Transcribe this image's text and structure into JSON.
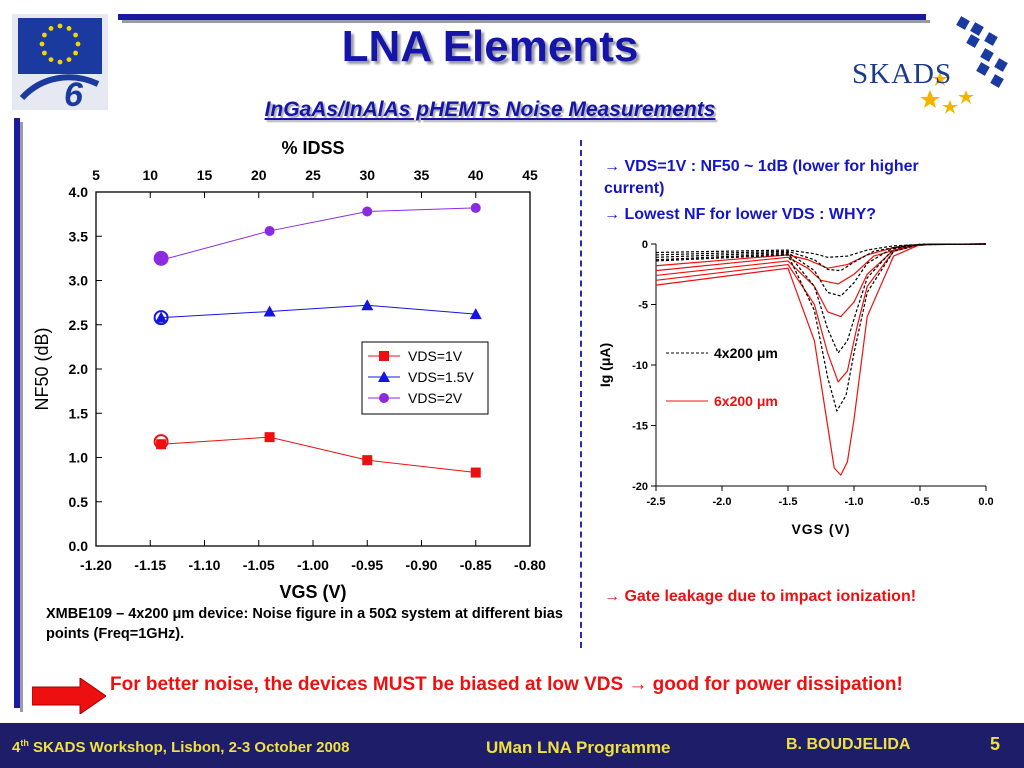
{
  "title": "LNA Elements",
  "subtitle": "InGaAs/InAlAs pHEMTs Noise Measurements",
  "logos": {
    "left": "eu-fp6-logo",
    "right_text": "SKADS"
  },
  "notes": {
    "n1": "→ VDS=1V : NF50 ~ 1dB (lower for higher current)",
    "n2": "→ Lowest NF for lower VDS : WHY?",
    "n3": "→ Gate leakage due to impact ionization!"
  },
  "caption": "XMBE109 – 4x200 μm device: Noise figure in a 50Ω system at different bias points (Freq=1GHz).",
  "conclusion": "For better noise, the devices MUST be biased at low VDS → good for power dissipation!",
  "footer": {
    "workshop_pre": "4",
    "workshop_sup": "th",
    "workshop_post": " SKADS Workshop, Lisbon, 2-3 October 2008",
    "programme": "UMan LNA Programme",
    "author": "B. BOUDJELIDA",
    "page": "5"
  },
  "colors": {
    "accent": "#1515a8",
    "red": "#ee1010",
    "footer_bg": "#1d1d6a",
    "footer_text": "#f0e040"
  },
  "chart_data": [
    {
      "type": "line",
      "title": "",
      "xlabel": "VGS (V)",
      "ylabel": "NF50 (dB)",
      "top_axis_label": "% IDSS",
      "xlim": [
        -1.2,
        -0.8
      ],
      "ylim": [
        0.0,
        4.0
      ],
      "top_xlim": [
        5,
        45
      ],
      "xticks": [
        "-1.20",
        "-1.15",
        "-1.10",
        "-1.05",
        "-1.00",
        "-0.95",
        "-0.90",
        "-0.85",
        "-0.80"
      ],
      "yticks": [
        "0.0",
        "0.5",
        "1.0",
        "1.5",
        "2.0",
        "2.5",
        "3.0",
        "3.5",
        "4.0"
      ],
      "top_xticks": [
        "5",
        "10",
        "15",
        "20",
        "25",
        "30",
        "35",
        "40",
        "45"
      ],
      "grid": false,
      "legend_position": "center-right",
      "series": [
        {
          "name": "VDS=1V",
          "color": "#ee1010",
          "marker": "square",
          "x": [
            -1.14,
            -1.04,
            -0.95,
            -0.85
          ],
          "y": [
            1.15,
            1.23,
            0.97,
            0.83
          ]
        },
        {
          "name": "VDS=1.5V",
          "color": "#1515e0",
          "marker": "triangle",
          "x": [
            -1.14,
            -1.04,
            -0.95,
            -0.85
          ],
          "y": [
            2.58,
            2.65,
            2.72,
            2.62
          ]
        },
        {
          "name": "VDS=2V",
          "color": "#8a2be2",
          "marker": "circle",
          "x": [
            -1.14,
            -1.04,
            -0.95,
            -0.85
          ],
          "y": [
            3.23,
            3.56,
            3.78,
            3.82
          ]
        }
      ],
      "highlight_markers": [
        {
          "color": "#ee1010",
          "x": -1.14,
          "y": 1.18
        },
        {
          "color": "#1515e0",
          "x": -1.14,
          "y": 2.58
        },
        {
          "color": "#8a2be2",
          "x": -1.14,
          "y": 3.25
        }
      ]
    },
    {
      "type": "line",
      "title": "",
      "xlabel": "VGS (V)",
      "ylabel": "Ig (μA)",
      "xlim": [
        -2.5,
        0.0
      ],
      "ylim": [
        -20,
        0
      ],
      "xticks": [
        "-2.5",
        "-2.0",
        "-1.5",
        "-1.0",
        "-0.5",
        "0.0"
      ],
      "yticks": [
        "0",
        "-5",
        "-10",
        "-15",
        "-20"
      ],
      "grid": false,
      "legend_position": "center-left",
      "legend": [
        {
          "name": "4x200 μm",
          "style": "dashed",
          "color": "#000000"
        },
        {
          "name": "6x200 μm",
          "style": "solid",
          "color": "#ee1010"
        }
      ],
      "series": [
        {
          "device": "6x200",
          "color": "#ee1010",
          "dashed": false,
          "x": [
            -2.5,
            -1.5,
            -1.3,
            -1.2,
            -1.15,
            -1.1,
            -1.05,
            -1.0,
            -0.9,
            -0.7,
            -0.5,
            0.0
          ],
          "y": [
            -3.4,
            -2.0,
            -8.0,
            -15.0,
            -18.5,
            -19.1,
            -18.0,
            -14.5,
            -6.0,
            -1.0,
            -0.05,
            0.0
          ]
        },
        {
          "device": "6x200",
          "color": "#ee1010",
          "dashed": false,
          "x": [
            -2.5,
            -1.5,
            -1.3,
            -1.2,
            -1.12,
            -1.05,
            -0.98,
            -0.9,
            -0.7,
            -0.5,
            0.0
          ],
          "y": [
            -3.0,
            -1.7,
            -5.0,
            -9.0,
            -11.4,
            -10.5,
            -7.0,
            -3.5,
            -0.6,
            -0.05,
            0.0
          ]
        },
        {
          "device": "6x200",
          "color": "#ee1010",
          "dashed": false,
          "x": [
            -2.5,
            -1.5,
            -1.3,
            -1.2,
            -1.1,
            -1.0,
            -0.9,
            -0.7,
            -0.5,
            0.0
          ],
          "y": [
            -2.6,
            -1.4,
            -3.5,
            -5.6,
            -6.0,
            -4.8,
            -2.5,
            -0.5,
            -0.05,
            0.0
          ]
        },
        {
          "device": "6x200",
          "color": "#ee1010",
          "dashed": false,
          "x": [
            -2.5,
            -1.5,
            -1.35,
            -1.25,
            -1.12,
            -1.0,
            -0.85,
            -0.6,
            -0.4,
            0.0
          ],
          "y": [
            -2.2,
            -1.1,
            -2.0,
            -3.0,
            -3.3,
            -2.5,
            -1.0,
            -0.2,
            -0.02,
            0.0
          ]
        },
        {
          "device": "6x200",
          "color": "#ee1010",
          "dashed": false,
          "x": [
            -2.5,
            -1.5,
            -1.35,
            -1.2,
            -1.05,
            -0.9,
            -0.7,
            -0.4,
            0.0
          ],
          "y": [
            -1.8,
            -0.9,
            -1.3,
            -2.0,
            -1.7,
            -0.9,
            -0.3,
            -0.02,
            0.0
          ]
        },
        {
          "device": "4x200",
          "color": "#000000",
          "dashed": true,
          "x": [
            -2.5,
            -1.5,
            -1.3,
            -1.2,
            -1.13,
            -1.06,
            -1.0,
            -0.9,
            -0.7,
            -0.5,
            0.0
          ],
          "y": [
            -1.4,
            -0.9,
            -5.5,
            -11.0,
            -13.8,
            -12.5,
            -9.0,
            -4.0,
            -0.6,
            -0.05,
            0.0
          ]
        },
        {
          "device": "4x200",
          "color": "#000000",
          "dashed": true,
          "x": [
            -2.5,
            -1.5,
            -1.3,
            -1.2,
            -1.12,
            -1.05,
            -0.98,
            -0.9,
            -0.7,
            -0.5,
            0.0
          ],
          "y": [
            -1.3,
            -0.8,
            -3.5,
            -7.0,
            -9.0,
            -8.0,
            -5.5,
            -2.8,
            -0.4,
            -0.03,
            0.0
          ]
        },
        {
          "device": "4x200",
          "color": "#000000",
          "dashed": true,
          "x": [
            -2.5,
            -1.5,
            -1.3,
            -1.2,
            -1.1,
            -1.0,
            -0.9,
            -0.7,
            -0.5,
            0.0
          ],
          "y": [
            -1.1,
            -0.7,
            -2.2,
            -4.0,
            -4.3,
            -3.2,
            -1.6,
            -0.3,
            -0.02,
            0.0
          ]
        },
        {
          "device": "4x200",
          "color": "#000000",
          "dashed": true,
          "x": [
            -2.5,
            -1.5,
            -1.3,
            -1.2,
            -1.1,
            -1.0,
            -0.85,
            -0.6,
            -0.4,
            0.0
          ],
          "y": [
            -0.9,
            -0.6,
            -1.3,
            -2.1,
            -2.2,
            -1.5,
            -0.6,
            -0.1,
            -0.01,
            0.0
          ]
        },
        {
          "device": "4x200",
          "color": "#000000",
          "dashed": true,
          "x": [
            -2.5,
            -1.5,
            -1.3,
            -1.2,
            -1.05,
            -0.9,
            -0.7,
            -0.4,
            0.0
          ],
          "y": [
            -0.7,
            -0.5,
            -0.8,
            -1.1,
            -1.0,
            -0.5,
            -0.15,
            -0.01,
            0.0
          ]
        }
      ]
    }
  ]
}
